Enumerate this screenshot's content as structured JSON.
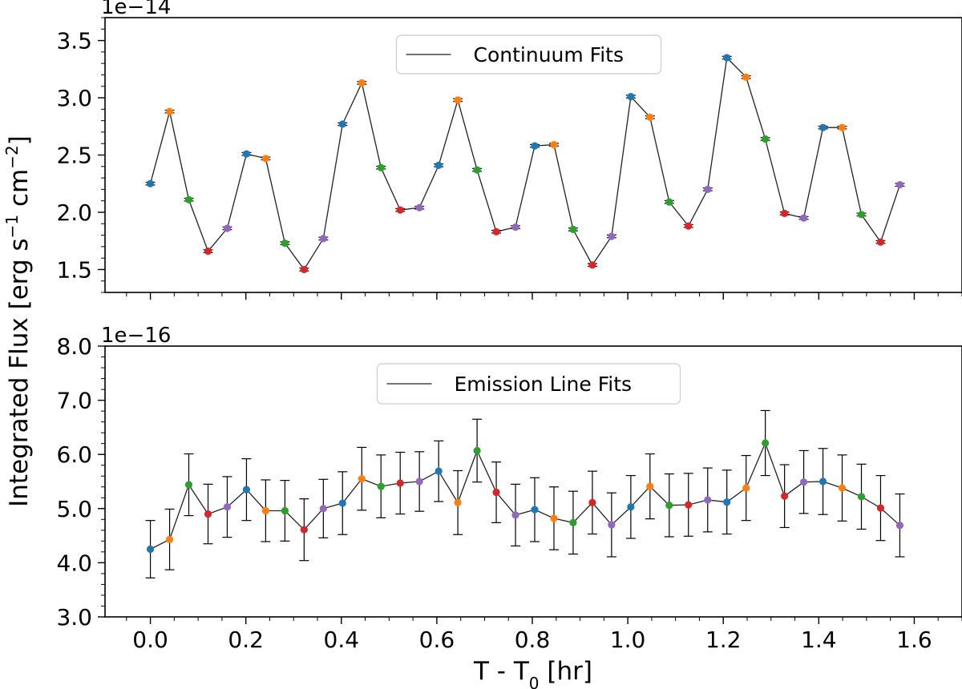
{
  "figure": {
    "ylabel_main": "Integrated Flux [erg s",
    "ylabel_sup1": "−1",
    "ylabel_mid": " cm",
    "ylabel_sup2": "−2",
    "ylabel_end": "]",
    "xlabel_main": "T - T",
    "xlabel_sub": "0",
    "xlabel_end": " [hr]"
  },
  "chart_data": [
    {
      "type": "scatter",
      "panel": "top",
      "legend_label": "Continuum Fits",
      "legend_position": "top-center",
      "offset_text": "1e−14",
      "ylim": [
        1.3,
        3.7
      ],
      "xlim": [
        -0.095,
        1.7
      ],
      "y_ticks": [
        "1.5",
        "2.0",
        "2.5",
        "3.0",
        "3.5"
      ],
      "x_ticks": [
        "0.0",
        "0.2",
        "0.4",
        "0.6",
        "0.8",
        "1.0",
        "1.2",
        "1.4",
        "1.6"
      ],
      "x": [
        0.0,
        0.0403,
        0.0805,
        0.1208,
        0.161,
        0.2013,
        0.2415,
        0.2818,
        0.322,
        0.3623,
        0.4025,
        0.4428,
        0.483,
        0.5233,
        0.5635,
        0.6038,
        0.644,
        0.6843,
        0.7245,
        0.7648,
        0.805,
        0.8453,
        0.8855,
        0.9258,
        0.966,
        1.0063,
        1.0465,
        1.0868,
        1.127,
        1.1673,
        1.2075,
        1.2478,
        1.288,
        1.3283,
        1.3685,
        1.4088,
        1.449,
        1.4893,
        1.5295,
        1.5698
      ],
      "y": [
        2.25,
        2.88,
        2.11,
        1.66,
        1.86,
        2.51,
        2.47,
        1.73,
        1.5,
        1.77,
        2.77,
        3.13,
        2.39,
        2.02,
        2.04,
        2.41,
        2.98,
        2.37,
        1.83,
        1.87,
        2.58,
        2.59,
        1.85,
        1.54,
        1.79,
        3.01,
        2.83,
        2.09,
        1.88,
        2.2,
        3.35,
        3.18,
        2.64,
        1.99,
        1.95,
        2.74,
        2.74,
        1.98,
        1.74,
        2.24
      ],
      "yerr": [
        0.012,
        0.012,
        0.012,
        0.012,
        0.012,
        0.012,
        0.012,
        0.012,
        0.012,
        0.012,
        0.012,
        0.012,
        0.012,
        0.012,
        0.012,
        0.012,
        0.012,
        0.012,
        0.012,
        0.012,
        0.012,
        0.012,
        0.012,
        0.012,
        0.012,
        0.012,
        0.012,
        0.012,
        0.012,
        0.012,
        0.012,
        0.012,
        0.012,
        0.012,
        0.012,
        0.012,
        0.012,
        0.012,
        0.012,
        0.012
      ],
      "point_colors": [
        "#1f77b4",
        "#ff7f0e",
        "#2ca02c",
        "#d62728",
        "#9467bd"
      ]
    },
    {
      "type": "scatter",
      "panel": "bottom",
      "legend_label": "Emission Line Fits",
      "legend_position": "top-center",
      "offset_text": "1e−16",
      "ylim": [
        3.0,
        8.0
      ],
      "xlim": [
        -0.095,
        1.7
      ],
      "y_ticks": [
        "3.0",
        "4.0",
        "5.0",
        "6.0",
        "7.0",
        "8.0"
      ],
      "x_ticks": [
        "0.0",
        "0.2",
        "0.4",
        "0.6",
        "0.8",
        "1.0",
        "1.2",
        "1.4",
        "1.6"
      ],
      "x": [
        0.0,
        0.0403,
        0.0805,
        0.1208,
        0.161,
        0.2013,
        0.2415,
        0.2818,
        0.322,
        0.3623,
        0.4025,
        0.4428,
        0.483,
        0.5233,
        0.5635,
        0.6038,
        0.644,
        0.6843,
        0.7245,
        0.7648,
        0.805,
        0.8453,
        0.8855,
        0.9258,
        0.966,
        1.0063,
        1.0465,
        1.0868,
        1.127,
        1.1673,
        1.2075,
        1.2478,
        1.288,
        1.3283,
        1.3685,
        1.4088,
        1.449,
        1.4893,
        1.5295,
        1.5698
      ],
      "y": [
        4.25,
        4.43,
        5.44,
        4.9,
        5.03,
        5.35,
        4.96,
        4.96,
        4.61,
        5.0,
        5.1,
        5.55,
        5.41,
        5.47,
        5.5,
        5.69,
        5.11,
        6.07,
        5.3,
        4.88,
        4.98,
        4.82,
        4.74,
        5.11,
        4.7,
        5.03,
        5.41,
        5.06,
        5.07,
        5.16,
        5.12,
        5.38,
        6.21,
        5.23,
        5.49,
        5.5,
        5.38,
        5.22,
        5.01,
        4.69
      ],
      "yerr": [
        0.53,
        0.56,
        0.57,
        0.55,
        0.56,
        0.57,
        0.57,
        0.56,
        0.57,
        0.54,
        0.58,
        0.58,
        0.58,
        0.57,
        0.55,
        0.56,
        0.59,
        0.58,
        0.56,
        0.57,
        0.59,
        0.58,
        0.58,
        0.58,
        0.59,
        0.58,
        0.6,
        0.58,
        0.58,
        0.59,
        0.59,
        0.6,
        0.6,
        0.58,
        0.58,
        0.61,
        0.61,
        0.6,
        0.6,
        0.58
      ],
      "point_colors": [
        "#1f77b4",
        "#ff7f0e",
        "#2ca02c",
        "#d62728",
        "#9467bd"
      ]
    }
  ]
}
